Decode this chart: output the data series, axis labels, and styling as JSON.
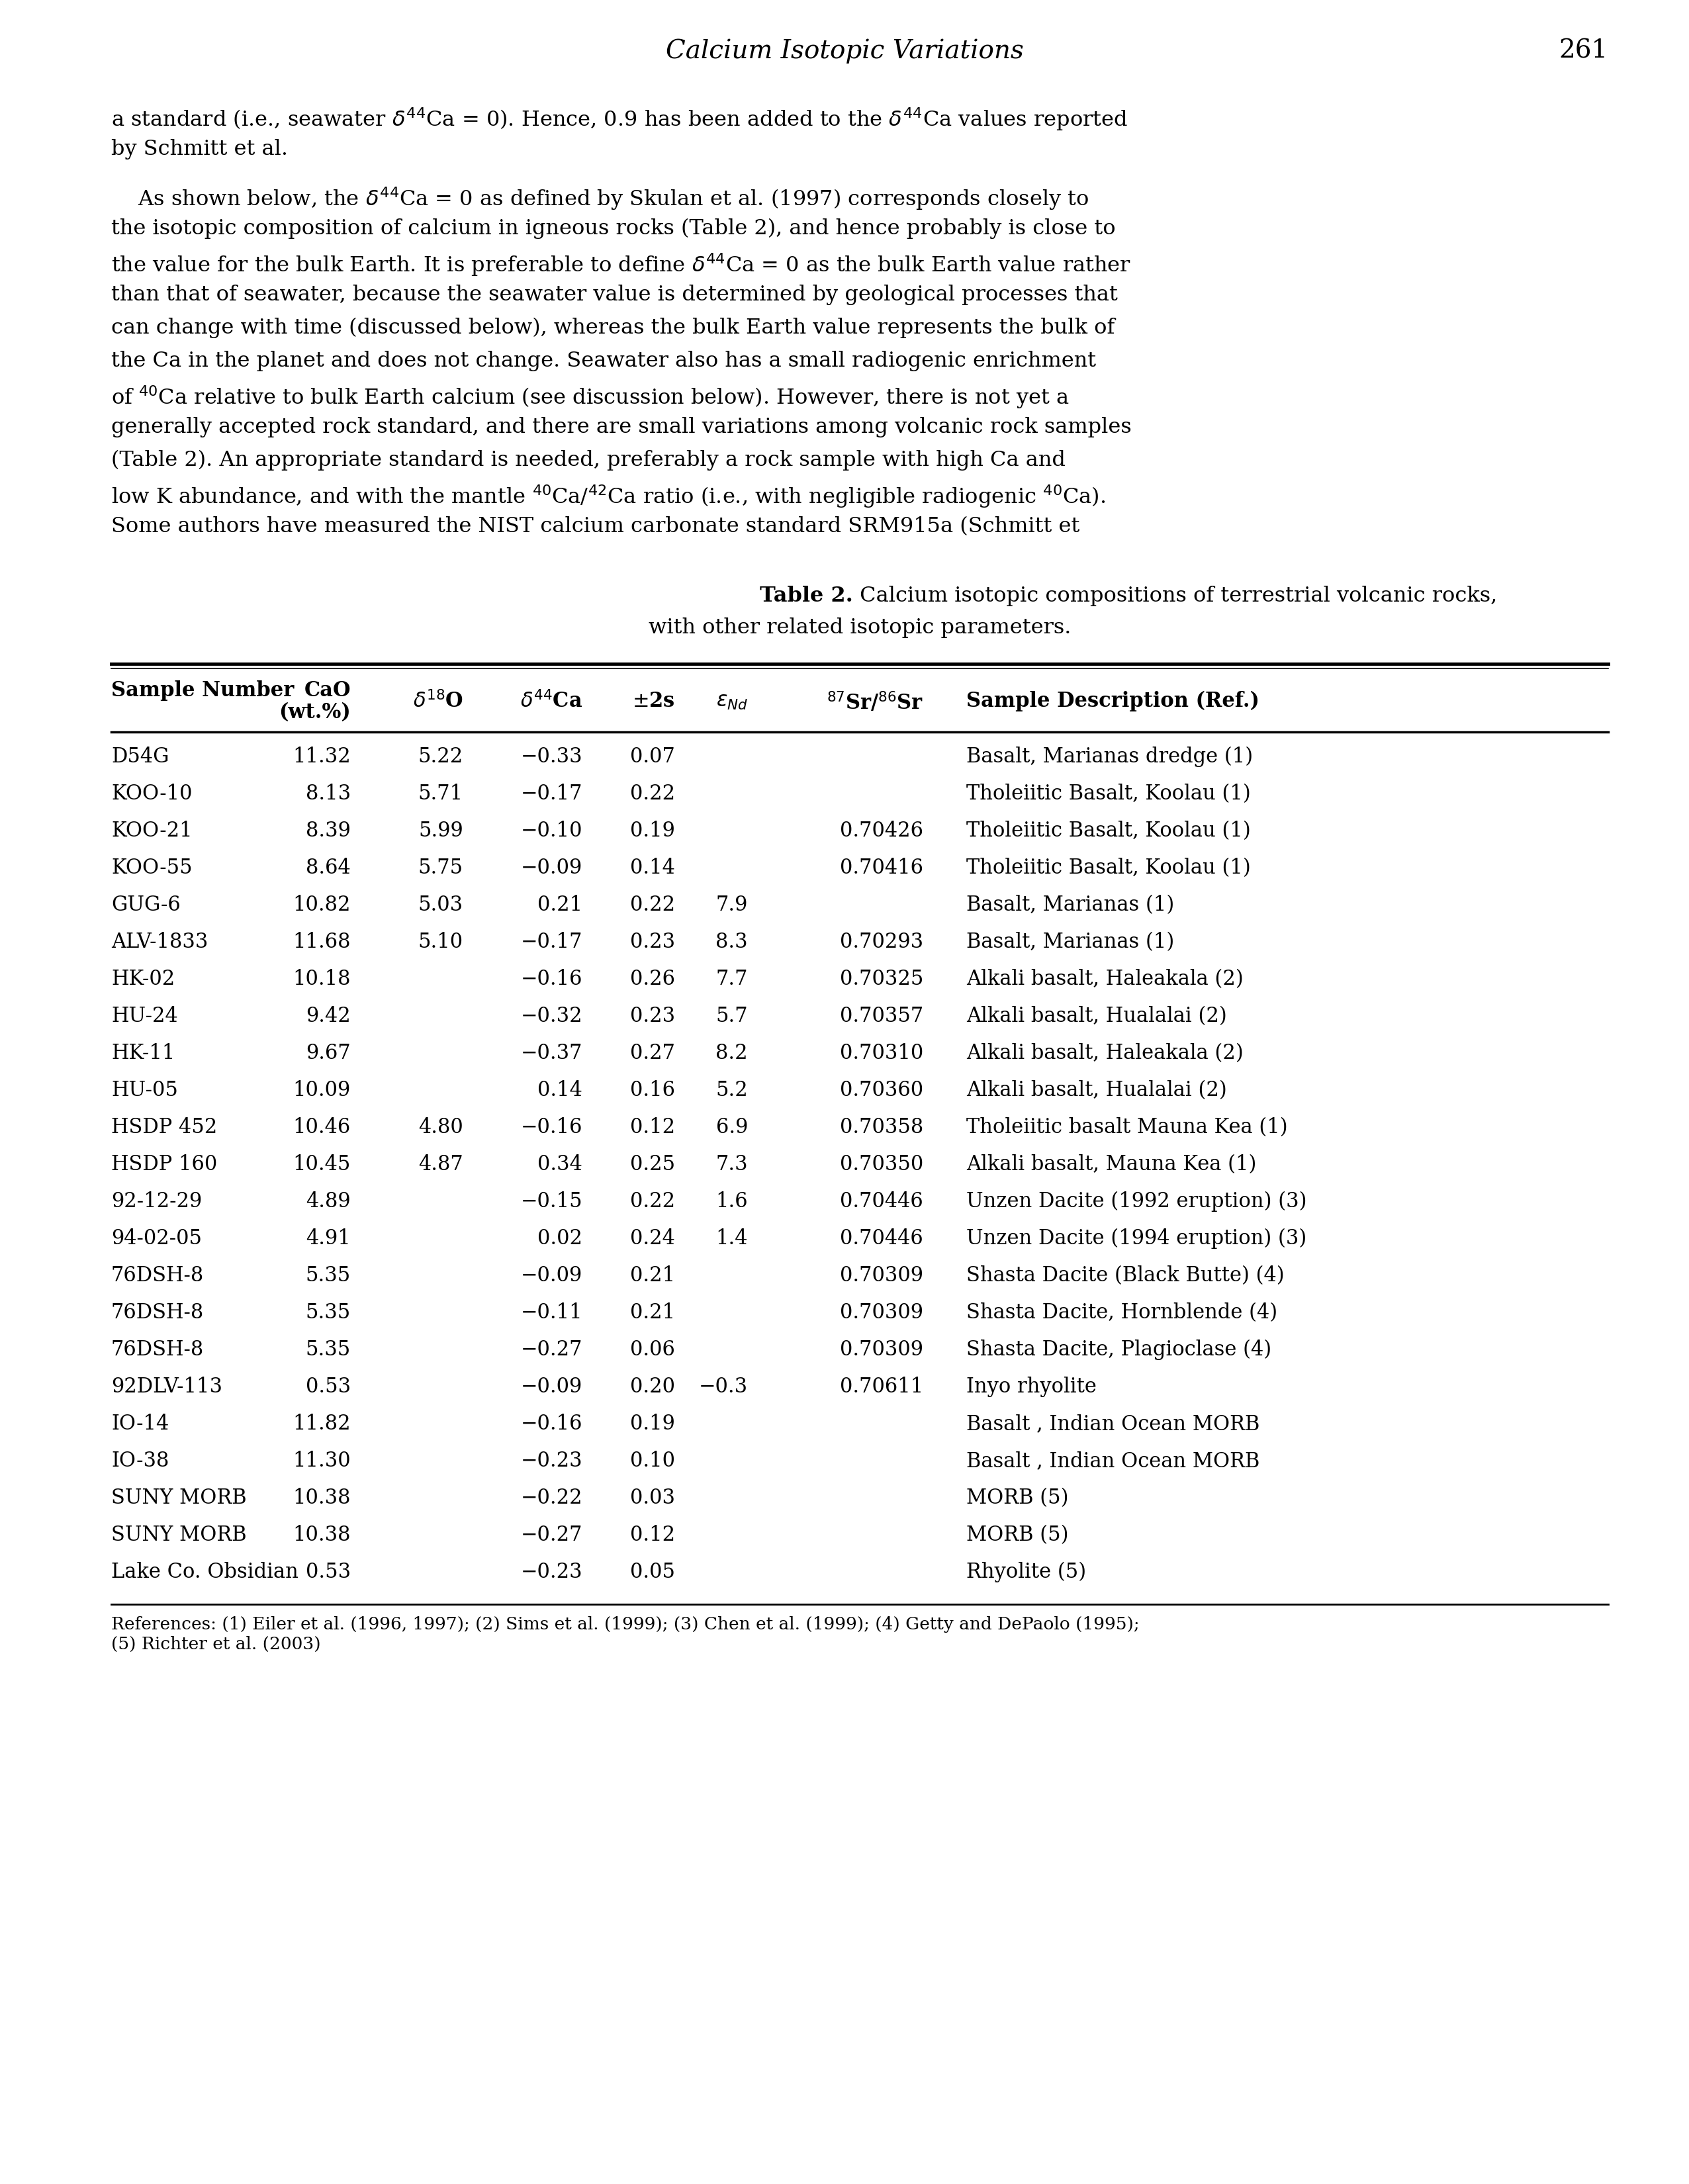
{
  "page_title": "Calcium Isotopic Variations",
  "page_number": "261",
  "rows": [
    [
      "D54G",
      "11.32",
      "5.22",
      "−0.33",
      "0.07",
      "",
      "",
      "Basalt, Marianas dredge (1)"
    ],
    [
      "KOO-10",
      "8.13",
      "5.71",
      "−0.17",
      "0.22",
      "",
      "",
      "Tholeiitic Basalt, Koolau (1)"
    ],
    [
      "KOO-21",
      "8.39",
      "5.99",
      "−0.10",
      "0.19",
      "",
      "0.70426",
      "Tholeiitic Basalt, Koolau (1)"
    ],
    [
      "KOO-55",
      "8.64",
      "5.75",
      "−0.09",
      "0.14",
      "",
      "0.70416",
      "Tholeiitic Basalt, Koolau (1)"
    ],
    [
      "GUG-6",
      "10.82",
      "5.03",
      "0.21",
      "0.22",
      "7.9",
      "",
      "Basalt, Marianas (1)"
    ],
    [
      "ALV-1833",
      "11.68",
      "5.10",
      "−0.17",
      "0.23",
      "8.3",
      "0.70293",
      "Basalt, Marianas (1)"
    ],
    [
      "HK-02",
      "10.18",
      "",
      "−0.16",
      "0.26",
      "7.7",
      "0.70325",
      "Alkali basalt, Haleakala (2)"
    ],
    [
      "HU-24",
      "9.42",
      "",
      "−0.32",
      "0.23",
      "5.7",
      "0.70357",
      "Alkali basalt, Hualalai (2)"
    ],
    [
      "HK-11",
      "9.67",
      "",
      "−0.37",
      "0.27",
      "8.2",
      "0.70310",
      "Alkali basalt, Haleakala (2)"
    ],
    [
      "HU-05",
      "10.09",
      "",
      "0.14",
      "0.16",
      "5.2",
      "0.70360",
      "Alkali basalt, Hualalai (2)"
    ],
    [
      "HSDP 452",
      "10.46",
      "4.80",
      "−0.16",
      "0.12",
      "6.9",
      "0.70358",
      "Tholeiitic basalt Mauna Kea (1)"
    ],
    [
      "HSDP 160",
      "10.45",
      "4.87",
      "0.34",
      "0.25",
      "7.3",
      "0.70350",
      "Alkali basalt, Mauna Kea (1)"
    ],
    [
      "92-12-29",
      "4.89",
      "",
      "−0.15",
      "0.22",
      "1.6",
      "0.70446",
      "Unzen Dacite (1992 eruption) (3)"
    ],
    [
      "94-02-05",
      "4.91",
      "",
      "0.02",
      "0.24",
      "1.4",
      "0.70446",
      "Unzen Dacite (1994 eruption) (3)"
    ],
    [
      "76DSH-8",
      "5.35",
      "",
      "−0.09",
      "0.21",
      "",
      "0.70309",
      "Shasta Dacite (Black Butte) (4)"
    ],
    [
      "76DSH-8",
      "5.35",
      "",
      "−0.11",
      "0.21",
      "",
      "0.70309",
      "Shasta Dacite, Hornblende (4)"
    ],
    [
      "76DSH-8",
      "5.35",
      "",
      "−0.27",
      "0.06",
      "",
      "0.70309",
      "Shasta Dacite, Plagioclase (4)"
    ],
    [
      "92DLV-113",
      "0.53",
      "",
      "−0.09",
      "0.20",
      "−0.3",
      "0.70611",
      "Inyo rhyolite"
    ],
    [
      "IO-14",
      "11.82",
      "",
      "−0.16",
      "0.19",
      "",
      "",
      "Basalt , Indian Ocean MORB"
    ],
    [
      "IO-38",
      "11.30",
      "",
      "−0.23",
      "0.10",
      "",
      "",
      "Basalt , Indian Ocean MORB"
    ],
    [
      "SUNY MORB",
      "10.38",
      "",
      "−0.22",
      "0.03",
      "",
      "",
      "MORB (5)"
    ],
    [
      "SUNY MORB",
      "10.38",
      "",
      "−0.27",
      "0.12",
      "",
      "",
      "MORB (5)"
    ],
    [
      "Lake Co. Obsidian",
      "0.53",
      "",
      "−0.23",
      "0.05",
      "",
      "",
      "Rhyolite (5)"
    ]
  ],
  "body_lines": [
    "    As shown below, the δ⁴⁴Ca = 0 as defined by Skulan et al. (1997) corresponds closely to",
    "the isotopic composition of calcium in igneous rocks (Table 2), and hence probably is close to",
    "the value for the bulk Earth. It is preferable to define δ⁴⁴Ca = 0 as the bulk Earth value rather",
    "than that of seawater, because the seawater value is determined by geological processes that",
    "can change with time (discussed below), whereas the bulk Earth value represents the bulk of",
    "the Ca in the planet and does not change. Seawater also has a small radiogenic enrichment",
    "of ⁴⁰Ca relative to bulk Earth calcium (see discussion below). However, there is not yet a",
    "generally accepted rock standard, and there are small variations among volcanic rock samples",
    "(Table 2). An appropriate standard is needed, preferably a rock sample with high Ca and",
    "low K abundance, and with the mantle ⁴⁰Ca/⁴²Ca ratio (i.e., with negligible radiogenic ⁴⁰Ca).",
    "Some authors have measured the NIST calcium carbonate standard SRM915a (Schmitt et"
  ],
  "references_line1": "References: (1) Eiler et al. (1996, 1997); (2) Sims et al. (1999); (3) Chen et al. (1999); (4) Getty and DePaolo (1995);",
  "references_line2": "(5) Richter et al. (2003)"
}
